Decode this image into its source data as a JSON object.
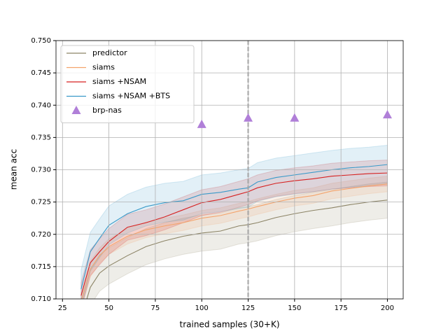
{
  "chart_data": {
    "type": "line",
    "xlabel": "trained samples (30+K)",
    "ylabel": "mean acc",
    "x": [
      35,
      40,
      45,
      50,
      60,
      70,
      80,
      90,
      100,
      110,
      120,
      125,
      130,
      140,
      150,
      160,
      170,
      180,
      190,
      200
    ],
    "series": [
      {
        "name": "predictor",
        "color": "#8c8466",
        "values": [
          0.707,
          0.7118,
          0.714,
          0.7151,
          0.7167,
          0.7181,
          0.719,
          0.7197,
          0.7202,
          0.7205,
          0.7213,
          0.7215,
          0.7218,
          0.7226,
          0.7232,
          0.7237,
          0.7241,
          0.7246,
          0.725,
          0.7253
        ],
        "lower": [
          0.7042,
          0.709,
          0.7112,
          0.7123,
          0.7139,
          0.7153,
          0.7162,
          0.7169,
          0.7174,
          0.7177,
          0.7185,
          0.7187,
          0.719,
          0.7198,
          0.7204,
          0.7209,
          0.7213,
          0.7218,
          0.7222,
          0.7225
        ],
        "upper": [
          0.7098,
          0.7146,
          0.7168,
          0.7179,
          0.7195,
          0.7209,
          0.7218,
          0.7225,
          0.723,
          0.7233,
          0.7241,
          0.7243,
          0.7246,
          0.7254,
          0.726,
          0.7265,
          0.7269,
          0.7274,
          0.7278,
          0.7281
        ]
      },
      {
        "name": "siams",
        "color": "#f4a46c",
        "values": [
          0.7095,
          0.7146,
          0.7167,
          0.7181,
          0.7197,
          0.7207,
          0.7213,
          0.7218,
          0.7225,
          0.7229,
          0.7236,
          0.7239,
          0.7243,
          0.725,
          0.7256,
          0.726,
          0.7267,
          0.7271,
          0.7275,
          0.7278
        ],
        "lower": [
          0.7083,
          0.7134,
          0.7155,
          0.7169,
          0.7185,
          0.7195,
          0.7201,
          0.7206,
          0.7213,
          0.7217,
          0.7224,
          0.7227,
          0.7231,
          0.7238,
          0.7244,
          0.7248,
          0.7255,
          0.7259,
          0.7263,
          0.7266
        ],
        "upper": [
          0.7107,
          0.7158,
          0.7179,
          0.7193,
          0.7209,
          0.7219,
          0.7225,
          0.723,
          0.7237,
          0.7241,
          0.7248,
          0.7251,
          0.7255,
          0.7262,
          0.7268,
          0.7272,
          0.7279,
          0.7283,
          0.7287,
          0.729
        ]
      },
      {
        "name": "siams +NSAM",
        "color": "#d62020",
        "values": [
          0.7105,
          0.7156,
          0.7173,
          0.7189,
          0.7211,
          0.7218,
          0.7227,
          0.7238,
          0.7249,
          0.7254,
          0.7262,
          0.7266,
          0.7272,
          0.7279,
          0.7283,
          0.7286,
          0.729,
          0.7292,
          0.7294,
          0.7295
        ],
        "lower": [
          0.7085,
          0.7136,
          0.7153,
          0.7169,
          0.7191,
          0.7198,
          0.7207,
          0.7218,
          0.7229,
          0.7234,
          0.7242,
          0.7246,
          0.7252,
          0.7259,
          0.7263,
          0.7266,
          0.727,
          0.7272,
          0.7274,
          0.7275
        ],
        "upper": [
          0.7125,
          0.7176,
          0.7193,
          0.7209,
          0.7231,
          0.7238,
          0.7247,
          0.7258,
          0.7269,
          0.7274,
          0.7282,
          0.7286,
          0.7292,
          0.7299,
          0.7303,
          0.7306,
          0.731,
          0.7312,
          0.7314,
          0.7315
        ]
      },
      {
        "name": "siams +NSAM +BTS",
        "color": "#3a9ac9",
        "values": [
          0.7115,
          0.7173,
          0.7194,
          0.7214,
          0.7232,
          0.7243,
          0.7249,
          0.7252,
          0.7262,
          0.7265,
          0.727,
          0.7272,
          0.7281,
          0.7288,
          0.7292,
          0.7296,
          0.73,
          0.7303,
          0.7305,
          0.7308
        ],
        "lower": [
          0.7085,
          0.7143,
          0.7164,
          0.7184,
          0.7202,
          0.7213,
          0.7219,
          0.7222,
          0.7232,
          0.7235,
          0.724,
          0.7242,
          0.7251,
          0.7258,
          0.7262,
          0.7266,
          0.727,
          0.7273,
          0.7275,
          0.7278
        ],
        "upper": [
          0.7145,
          0.7203,
          0.7224,
          0.7244,
          0.7262,
          0.7273,
          0.7279,
          0.7282,
          0.7292,
          0.7295,
          0.73,
          0.7302,
          0.7311,
          0.7318,
          0.7322,
          0.7326,
          0.733,
          0.7333,
          0.7335,
          0.7338
        ]
      }
    ],
    "scatter": {
      "name": "brp-nas",
      "color": "#b07fd8",
      "x": [
        100,
        125,
        150,
        200
      ],
      "values": [
        0.737,
        0.738,
        0.738,
        0.7385
      ]
    },
    "vline_x": 125,
    "xlim": [
      21.5,
      208.5
    ],
    "ylim": [
      0.71,
      0.75
    ],
    "xticks": [
      25,
      50,
      75,
      100,
      125,
      150,
      175,
      200
    ],
    "yticks": [
      {
        "value": 0.71,
        "label": "0.710"
      },
      0.715,
      {
        "value": 0.72,
        "label": "0.720"
      },
      0.725,
      {
        "value": 0.73,
        "label": "0.730"
      },
      0.735,
      {
        "value": 0.74,
        "label": "0.740"
      },
      0.745,
      {
        "value": 0.75,
        "label": "0.750"
      }
    ],
    "grid": true,
    "legend": "upper left"
  }
}
